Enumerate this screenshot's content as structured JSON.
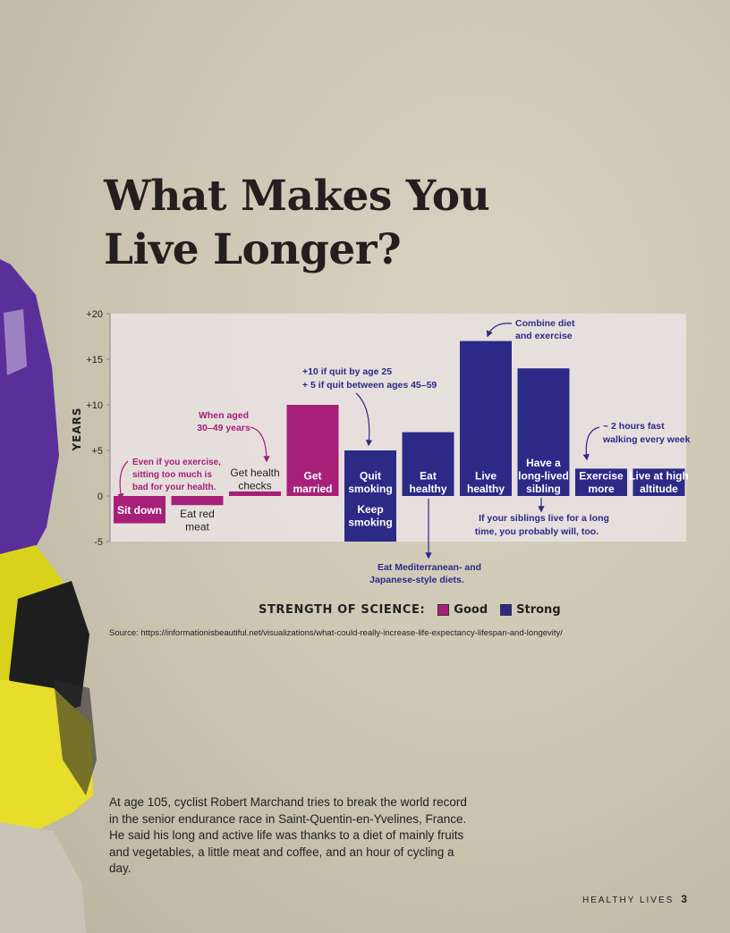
{
  "title": {
    "line1": "What Makes You",
    "line2": "Live Longer?"
  },
  "colors": {
    "good": "#a62079",
    "strong": "#2c2a86",
    "plot_bg": "#e7e1df"
  },
  "chart_data": {
    "type": "bar",
    "title": "What Makes You Live Longer?",
    "ylabel": "YEARS",
    "xlabel": "",
    "ylim": [
      -5,
      20
    ],
    "yticks": [
      {
        "v": 20,
        "t": "+20"
      },
      {
        "v": 15,
        "t": "+15"
      },
      {
        "v": 10,
        "t": "+10"
      },
      {
        "v": 5,
        "t": "+5"
      },
      {
        "v": 0,
        "t": "0"
      },
      {
        "v": -5,
        "t": "-5"
      }
    ],
    "grid": false,
    "legend_title": "STRENGTH OF SCIENCE:",
    "legend_placement": "bottom",
    "legend": [
      {
        "key": "good",
        "label": "Good"
      },
      {
        "key": "strong",
        "label": "Strong"
      }
    ],
    "bars": [
      {
        "label": [
          "Sit down"
        ],
        "value": -3,
        "strength": "good"
      },
      {
        "label": [
          "Eat red",
          "meat"
        ],
        "value": -1,
        "strength": "good"
      },
      {
        "label": [
          "Get health",
          "checks"
        ],
        "value": 0.5,
        "strength": "good"
      },
      {
        "label": [
          "Get",
          "married"
        ],
        "value": 10,
        "strength": "good"
      },
      {
        "label": [
          "Quit",
          "smoking"
        ],
        "value": 5,
        "strength": "strong"
      },
      {
        "label": [
          "Keep",
          "smoking"
        ],
        "value": -5,
        "strength": "strong"
      },
      {
        "label": [
          "Eat",
          "healthy"
        ],
        "value": 7,
        "strength": "strong"
      },
      {
        "label": [
          "Live",
          "healthy"
        ],
        "value": 17,
        "strength": "strong"
      },
      {
        "label": [
          "Have a",
          "long-lived",
          "sibling"
        ],
        "value": 14,
        "strength": "strong"
      },
      {
        "label": [
          "Exercise",
          "more"
        ],
        "value": 3,
        "strength": "strong"
      },
      {
        "label": [
          "Live at high",
          "altitude"
        ],
        "value": 3,
        "strength": "strong"
      }
    ],
    "annotations": [
      {
        "lines": [
          "Combine diet",
          "and exercise"
        ],
        "color": "strong"
      },
      {
        "lines": [
          "+10 if quit by age 25",
          "+ 5 if quit between ages 45–59"
        ],
        "color": "strong"
      },
      {
        "lines": [
          "When aged",
          "30–49 years"
        ],
        "color": "good"
      },
      {
        "lines": [
          "Even if you exercise,",
          "sitting too much is",
          "bad for your health."
        ],
        "color": "good"
      },
      {
        "lines": [
          "~ 2 hours fast",
          "walking every week"
        ],
        "color": "strong"
      },
      {
        "lines": [
          "If your siblings live for a long",
          "time, you probably will, too."
        ],
        "color": "strong"
      },
      {
        "lines": [
          "Eat Mediterranean- and",
          "Japanese-style diets."
        ],
        "color": "strong"
      }
    ]
  },
  "source": "Source: https://informationisbeautiful.net/visualizations/what-could-really-increase-life-expectancy-lifespan-and-longevity/",
  "caption": "At age 105, cyclist Robert Marchand tries to break the world record in the senior endurance race in Saint-Quentin-en-Yvelines, France. He said his long and active life was thanks to a diet of mainly fruits and vegetables, a little meat and coffee, and an hour of cycling a day.",
  "footer": {
    "section": "HEALTHY LIVES",
    "page": "3"
  }
}
